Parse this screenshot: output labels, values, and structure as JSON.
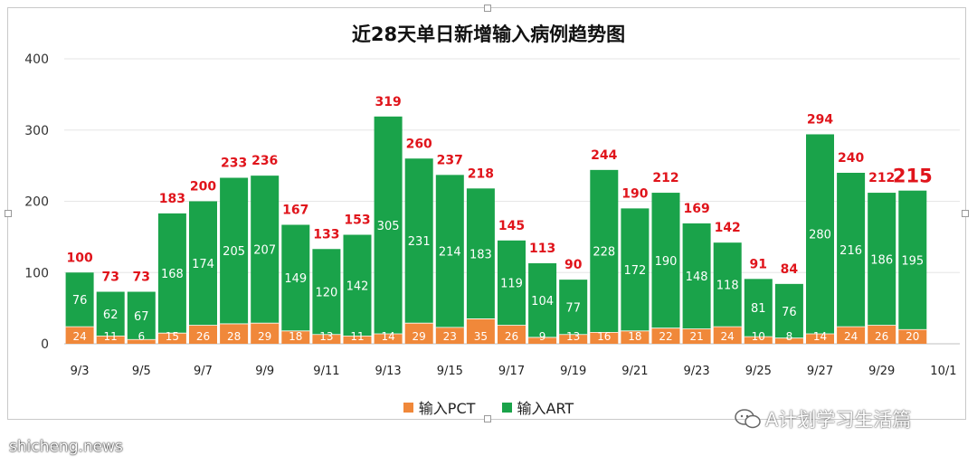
{
  "colors": {
    "pct": "#f0883a",
    "art": "#1aa34a",
    "total_label": "#e0141b"
  },
  "chart_data": {
    "type": "bar",
    "stacked": true,
    "title": "近28天单日新增输入病例趋势图",
    "categories": [
      "9/3",
      "9/4",
      "9/5",
      "9/6",
      "9/7",
      "9/8",
      "9/9",
      "9/10",
      "9/11",
      "9/12",
      "9/13",
      "9/14",
      "9/15",
      "9/16",
      "9/17",
      "9/18",
      "9/19",
      "9/20",
      "9/21",
      "9/22",
      "9/23",
      "9/24",
      "9/25",
      "9/26",
      "9/27",
      "9/28",
      "9/29",
      "9/30"
    ],
    "x_tick_labels": [
      "9/3",
      "9/5",
      "9/7",
      "9/9",
      "9/11",
      "9/13",
      "9/15",
      "9/17",
      "9/19",
      "9/21",
      "9/23",
      "9/25",
      "9/27",
      "9/29",
      "10/1"
    ],
    "series": [
      {
        "name": "输入PCT",
        "values": [
          24,
          11,
          6,
          15,
          26,
          28,
          29,
          18,
          13,
          11,
          14,
          29,
          23,
          35,
          26,
          9,
          13,
          16,
          18,
          22,
          21,
          24,
          10,
          8,
          14,
          24,
          26,
          20
        ]
      },
      {
        "name": "输入ART",
        "values": [
          76,
          62,
          67,
          168,
          174,
          205,
          207,
          149,
          120,
          142,
          305,
          231,
          214,
          183,
          119,
          104,
          77,
          228,
          172,
          190,
          148,
          118,
          81,
          76,
          280,
          216,
          186,
          195
        ]
      }
    ],
    "totals": [
      100,
      73,
      73,
      183,
      200,
      233,
      236,
      167,
      133,
      153,
      319,
      260,
      237,
      218,
      145,
      113,
      90,
      244,
      190,
      212,
      169,
      142,
      91,
      84,
      294,
      240,
      212,
      215
    ],
    "ylim": [
      0,
      400
    ],
    "y_ticks": [
      0,
      100,
      200,
      300,
      400
    ],
    "grid": true,
    "legend": "bottom"
  },
  "watermark": {
    "text": "A计划学习生活篇"
  },
  "footer": {
    "site": "shicheng.news"
  }
}
